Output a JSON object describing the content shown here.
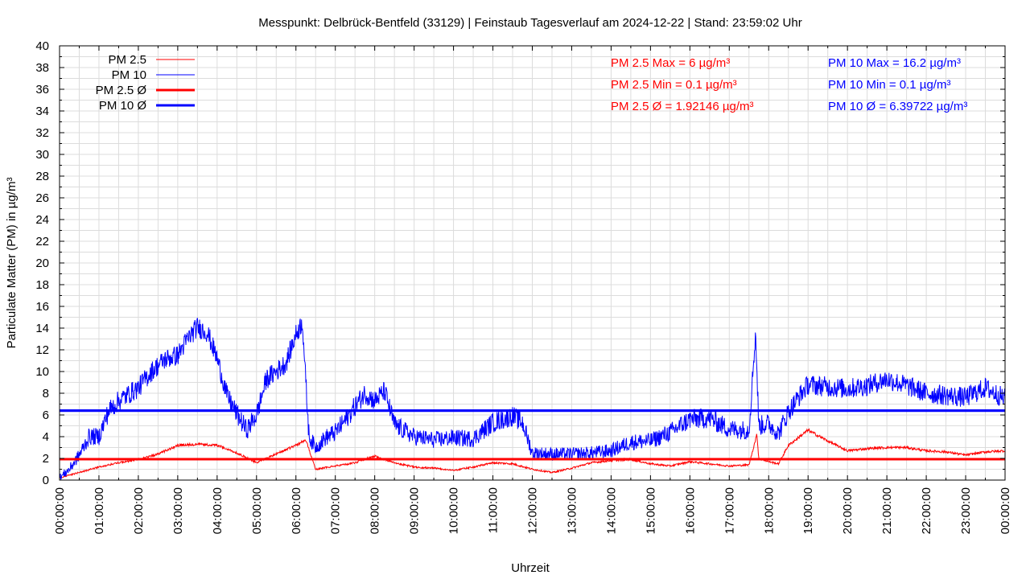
{
  "chart_data": {
    "type": "line",
    "title": "Messpunkt: Delbrück-Bentfeld (33129) | Feinstaub Tagesverlauf am 2024-12-22 | Stand: 23:59:02 Uhr",
    "xlabel": "Uhrzeit",
    "ylabel": "Particulate Matter (PM) in µg/m³",
    "xlim": [
      "00:00:00",
      "24:00:00"
    ],
    "ylim": [
      0,
      40
    ],
    "grid": true,
    "legend_position": "top-left",
    "x_ticks": [
      "00:00:00",
      "01:00:00",
      "02:00:00",
      "03:00:00",
      "04:00:00",
      "05:00:00",
      "06:00:00",
      "07:00:00",
      "08:00:00",
      "09:00:00",
      "10:00:00",
      "11:00:00",
      "12:00:00",
      "13:00:00",
      "14:00:00",
      "15:00:00",
      "16:00:00",
      "17:00:00",
      "18:00:00",
      "19:00:00",
      "20:00:00",
      "21:00:00",
      "22:00:00",
      "23:00:00",
      "00:00:00"
    ],
    "y_ticks": [
      0,
      2,
      4,
      6,
      8,
      10,
      12,
      14,
      16,
      18,
      20,
      22,
      24,
      26,
      28,
      30,
      32,
      34,
      36,
      38,
      40
    ],
    "legend": [
      {
        "label": "PM 2.5",
        "color": "#ff0000",
        "style": "thin"
      },
      {
        "label": "PM 10",
        "color": "#0000ff",
        "style": "thin"
      },
      {
        "label": "PM 2.5 Ø",
        "color": "#ff0000",
        "style": "thick"
      },
      {
        "label": "PM 10 Ø",
        "color": "#0000ff",
        "style": "thick"
      }
    ],
    "series": [
      {
        "name": "PM 2.5",
        "color": "#ff0000",
        "x": [
          "00:00",
          "00:30",
          "01:00",
          "01:30",
          "02:00",
          "02:30",
          "03:00",
          "03:30",
          "04:00",
          "04:30",
          "05:00",
          "05:30",
          "06:00",
          "06:15",
          "06:30",
          "07:00",
          "07:30",
          "08:00",
          "08:30",
          "09:00",
          "09:30",
          "10:00",
          "10:30",
          "11:00",
          "11:30",
          "12:00",
          "12:30",
          "13:00",
          "13:30",
          "14:00",
          "14:30",
          "15:00",
          "15:30",
          "16:00",
          "16:30",
          "17:00",
          "17:30",
          "17:42",
          "17:45",
          "18:00",
          "18:15",
          "18:30",
          "19:00",
          "19:30",
          "20:00",
          "20:30",
          "21:00",
          "21:30",
          "22:00",
          "22:30",
          "23:00",
          "23:30",
          "24:00"
        ],
        "y": [
          0.2,
          0.7,
          1.2,
          1.6,
          1.9,
          2.4,
          3.2,
          3.3,
          3.2,
          2.5,
          1.6,
          2.4,
          3.2,
          3.7,
          1.0,
          1.3,
          1.6,
          2.2,
          1.6,
          1.2,
          1.1,
          0.9,
          1.2,
          1.6,
          1.5,
          1.0,
          0.7,
          1.1,
          1.6,
          1.8,
          1.9,
          1.5,
          1.3,
          1.7,
          1.5,
          1.3,
          1.4,
          4.2,
          2.0,
          1.7,
          1.5,
          3.2,
          4.6,
          3.6,
          2.7,
          2.9,
          3.0,
          3.0,
          2.7,
          2.6,
          2.3,
          2.6,
          2.7
        ]
      },
      {
        "name": "PM 10",
        "color": "#0000ff",
        "x": [
          "00:00",
          "00:15",
          "00:30",
          "00:45",
          "01:00",
          "01:15",
          "01:30",
          "01:45",
          "02:00",
          "02:20",
          "02:40",
          "03:00",
          "03:15",
          "03:30",
          "03:45",
          "04:00",
          "04:15",
          "04:30",
          "04:45",
          "05:00",
          "05:15",
          "05:30",
          "05:45",
          "06:00",
          "06:10",
          "06:15",
          "06:20",
          "06:30",
          "06:45",
          "07:00",
          "07:15",
          "07:30",
          "07:45",
          "08:00",
          "08:15",
          "08:30",
          "09:00",
          "09:30",
          "10:00",
          "10:30",
          "11:00",
          "11:15",
          "11:30",
          "11:45",
          "12:00",
          "12:30",
          "13:00",
          "13:30",
          "14:00",
          "14:30",
          "15:00",
          "15:30",
          "16:00",
          "16:30",
          "17:00",
          "17:30",
          "17:40",
          "17:45",
          "18:00",
          "18:15",
          "18:30",
          "18:45",
          "19:00",
          "19:30",
          "20:00",
          "20:30",
          "21:00",
          "21:30",
          "22:00",
          "22:30",
          "23:00",
          "23:30",
          "24:00"
        ],
        "y": [
          0.2,
          1.0,
          2.3,
          4.0,
          4.0,
          6.4,
          7.3,
          7.9,
          8.5,
          10.0,
          11.1,
          11.5,
          13.0,
          14.1,
          13.6,
          11.2,
          7.8,
          6.1,
          4.6,
          6.0,
          9.3,
          10.0,
          10.8,
          13.4,
          14.6,
          9.0,
          4.0,
          3.0,
          3.9,
          4.4,
          5.5,
          6.8,
          8.0,
          7.3,
          8.2,
          5.1,
          4.0,
          3.7,
          3.9,
          3.8,
          5.3,
          5.6,
          5.9,
          5.3,
          2.5,
          2.4,
          2.4,
          2.5,
          2.7,
          3.5,
          3.6,
          4.4,
          5.6,
          5.7,
          4.7,
          4.6,
          13.6,
          5.0,
          5.2,
          4.3,
          6.3,
          7.6,
          8.8,
          8.6,
          8.4,
          8.7,
          9.3,
          8.7,
          8.0,
          7.8,
          7.6,
          8.5,
          7.5
        ]
      }
    ],
    "averages": [
      {
        "name": "PM 2.5 Ø",
        "value": 1.92146,
        "color": "#ff0000"
      },
      {
        "name": "PM 10 Ø",
        "value": 6.39722,
        "color": "#0000ff"
      }
    ],
    "stats": {
      "pm25": {
        "color": "#ff0000",
        "lines": [
          "PM 2.5 Max = 6 µg/m³",
          "PM 2.5 Min = 0.1 µg/m³",
          "PM 2.5 Ø = 1.92146 µg/m³"
        ]
      },
      "pm10": {
        "color": "#0000ff",
        "lines": [
          "PM 10 Max = 16.2 µg/m³",
          "PM 10 Min = 0.1 µg/m³",
          "PM 10 Ø = 6.39722 µg/m³"
        ]
      }
    }
  }
}
